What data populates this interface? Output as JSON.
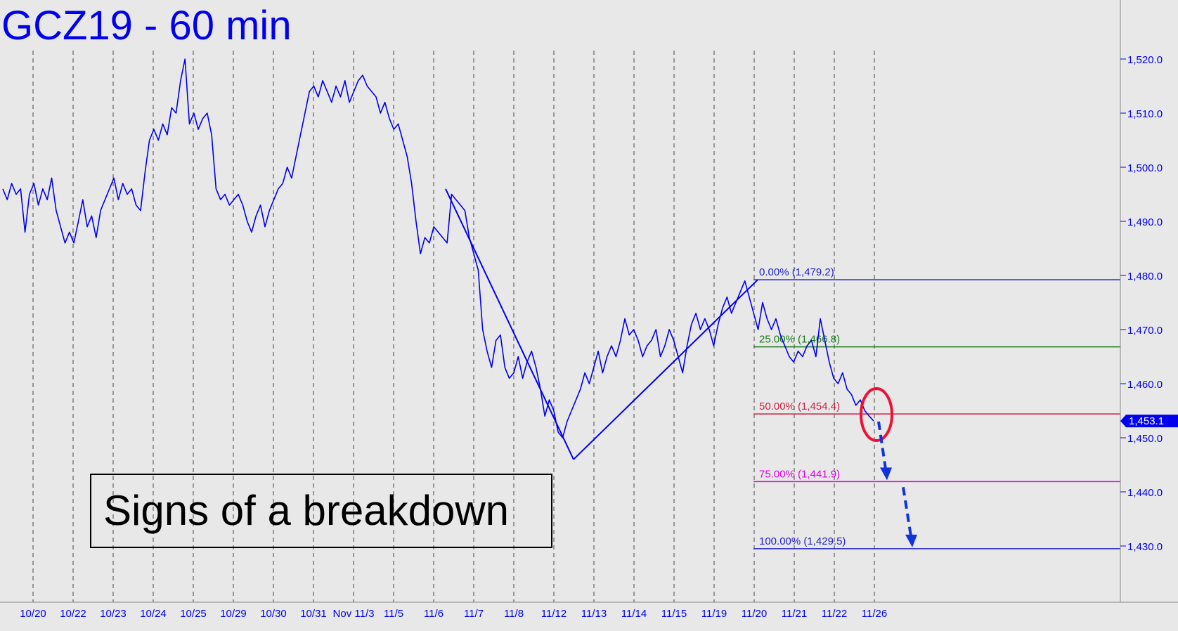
{
  "chart_data": {
    "type": "line",
    "title": "GCZ19 - 60 min",
    "annotation": "Signs of a breakdown",
    "ylim": [
      1423,
      1530
    ],
    "y_ticks": [
      1430,
      1440,
      1450,
      1460,
      1470,
      1480,
      1490,
      1500,
      1510,
      1520
    ],
    "y_tick_labels": [
      "1,430.0",
      "1,440.0",
      "1,450.0",
      "1,460.0",
      "1,470.0",
      "1,480.0",
      "1,490.0",
      "1,500.0",
      "1,510.0",
      "1,520.0"
    ],
    "x_labels": [
      "10/20",
      "10/22",
      "10/23",
      "10/24",
      "10/25",
      "10/29",
      "10/30",
      "10/31",
      "Nov 11/3",
      "11/5",
      "11/6",
      "11/7",
      "11/8",
      "11/12",
      "11/13",
      "11/14",
      "11/15",
      "11/19",
      "11/20",
      "11/21",
      "11/22",
      "11/26"
    ],
    "last_price": 1453.1,
    "last_price_label": "1,453.1",
    "series": [
      {
        "values": [
          1496,
          1494,
          1497,
          1495,
          1496,
          1488,
          1495,
          1497,
          1493,
          1496,
          1494,
          1498,
          1492,
          1489,
          1486,
          1488,
          1486,
          1490,
          1494,
          1489,
          1491,
          1487,
          1492,
          1494,
          1496,
          1498,
          1494,
          1497,
          1495,
          1496,
          1493,
          1492,
          1499,
          1505,
          1507,
          1505,
          1508,
          1506,
          1511,
          1510,
          1516,
          1520,
          1508,
          1510,
          1507,
          1509,
          1510,
          1506,
          1496,
          1494,
          1495,
          1493,
          1494,
          1495,
          1493,
          1490,
          1488,
          1491,
          1493,
          1489,
          1492,
          1494,
          1496,
          1497,
          1500,
          1498,
          1502,
          1506,
          1510,
          1514,
          1515,
          1513,
          1516,
          1514,
          1512,
          1515,
          1513,
          1516,
          1512,
          1514,
          1516,
          1517,
          1515,
          1514,
          1513,
          1510,
          1512,
          1509,
          1507,
          1508,
          1505,
          1502,
          1497,
          1490,
          1484,
          1487,
          1486,
          1489,
          1488,
          1487,
          1486,
          1495,
          1494,
          1493,
          1492,
          1487,
          1484,
          1481,
          1470,
          1466,
          1463,
          1468,
          1469,
          1463,
          1461,
          1462,
          1465,
          1461,
          1464,
          1466,
          1463,
          1459,
          1454,
          1457,
          1455,
          1451,
          1450,
          1453,
          1455,
          1457,
          1459,
          1462,
          1460,
          1463,
          1466,
          1462,
          1465,
          1467,
          1465,
          1468,
          1472,
          1469,
          1470,
          1468,
          1465,
          1467,
          1468,
          1470,
          1465,
          1467,
          1470,
          1468,
          1465,
          1462,
          1467,
          1471,
          1473,
          1470,
          1472,
          1470,
          1467,
          1471,
          1474,
          1476,
          1473,
          1475,
          1477,
          1479,
          1476,
          1473,
          1470,
          1475,
          1472,
          1470,
          1472,
          1469,
          1467,
          1465,
          1464,
          1466,
          1465,
          1467,
          1468,
          1465,
          1472,
          1468,
          1464,
          1461,
          1460,
          1462,
          1459,
          1458,
          1456,
          1457,
          1455,
          1454,
          1453.1
        ]
      }
    ],
    "swing_lines": [
      {
        "label": "swing-down",
        "from": 1496,
        "to": 1446
      },
      {
        "label": "swing-up",
        "from": 1446,
        "to": 1479.2
      }
    ],
    "fib_levels": [
      {
        "label": "0.00% (1,479.2)",
        "value": 1479.2,
        "color": "#2222cc"
      },
      {
        "label": "25.00% (1,466.8)",
        "value": 1466.8,
        "color": "#1a7a1a"
      },
      {
        "label": "50.00% (1,454.4)",
        "value": 1454.4,
        "color": "#cc2244"
      },
      {
        "label": "75.00% (1,441.9)",
        "value": 1441.9,
        "color": "#dd00dd"
      },
      {
        "label": "100.00% (1,429.5)",
        "value": 1429.5,
        "color": "#2222cc"
      }
    ],
    "projection_targets": [
      1441.9,
      1429.5
    ],
    "grid": true,
    "colors": {
      "price": "#0000ee",
      "background": "#e8e8e8",
      "axis_text": "#0000ee",
      "circle": "#ee1133",
      "arrow": "#1133dd",
      "annotation_text": "#000000"
    }
  }
}
